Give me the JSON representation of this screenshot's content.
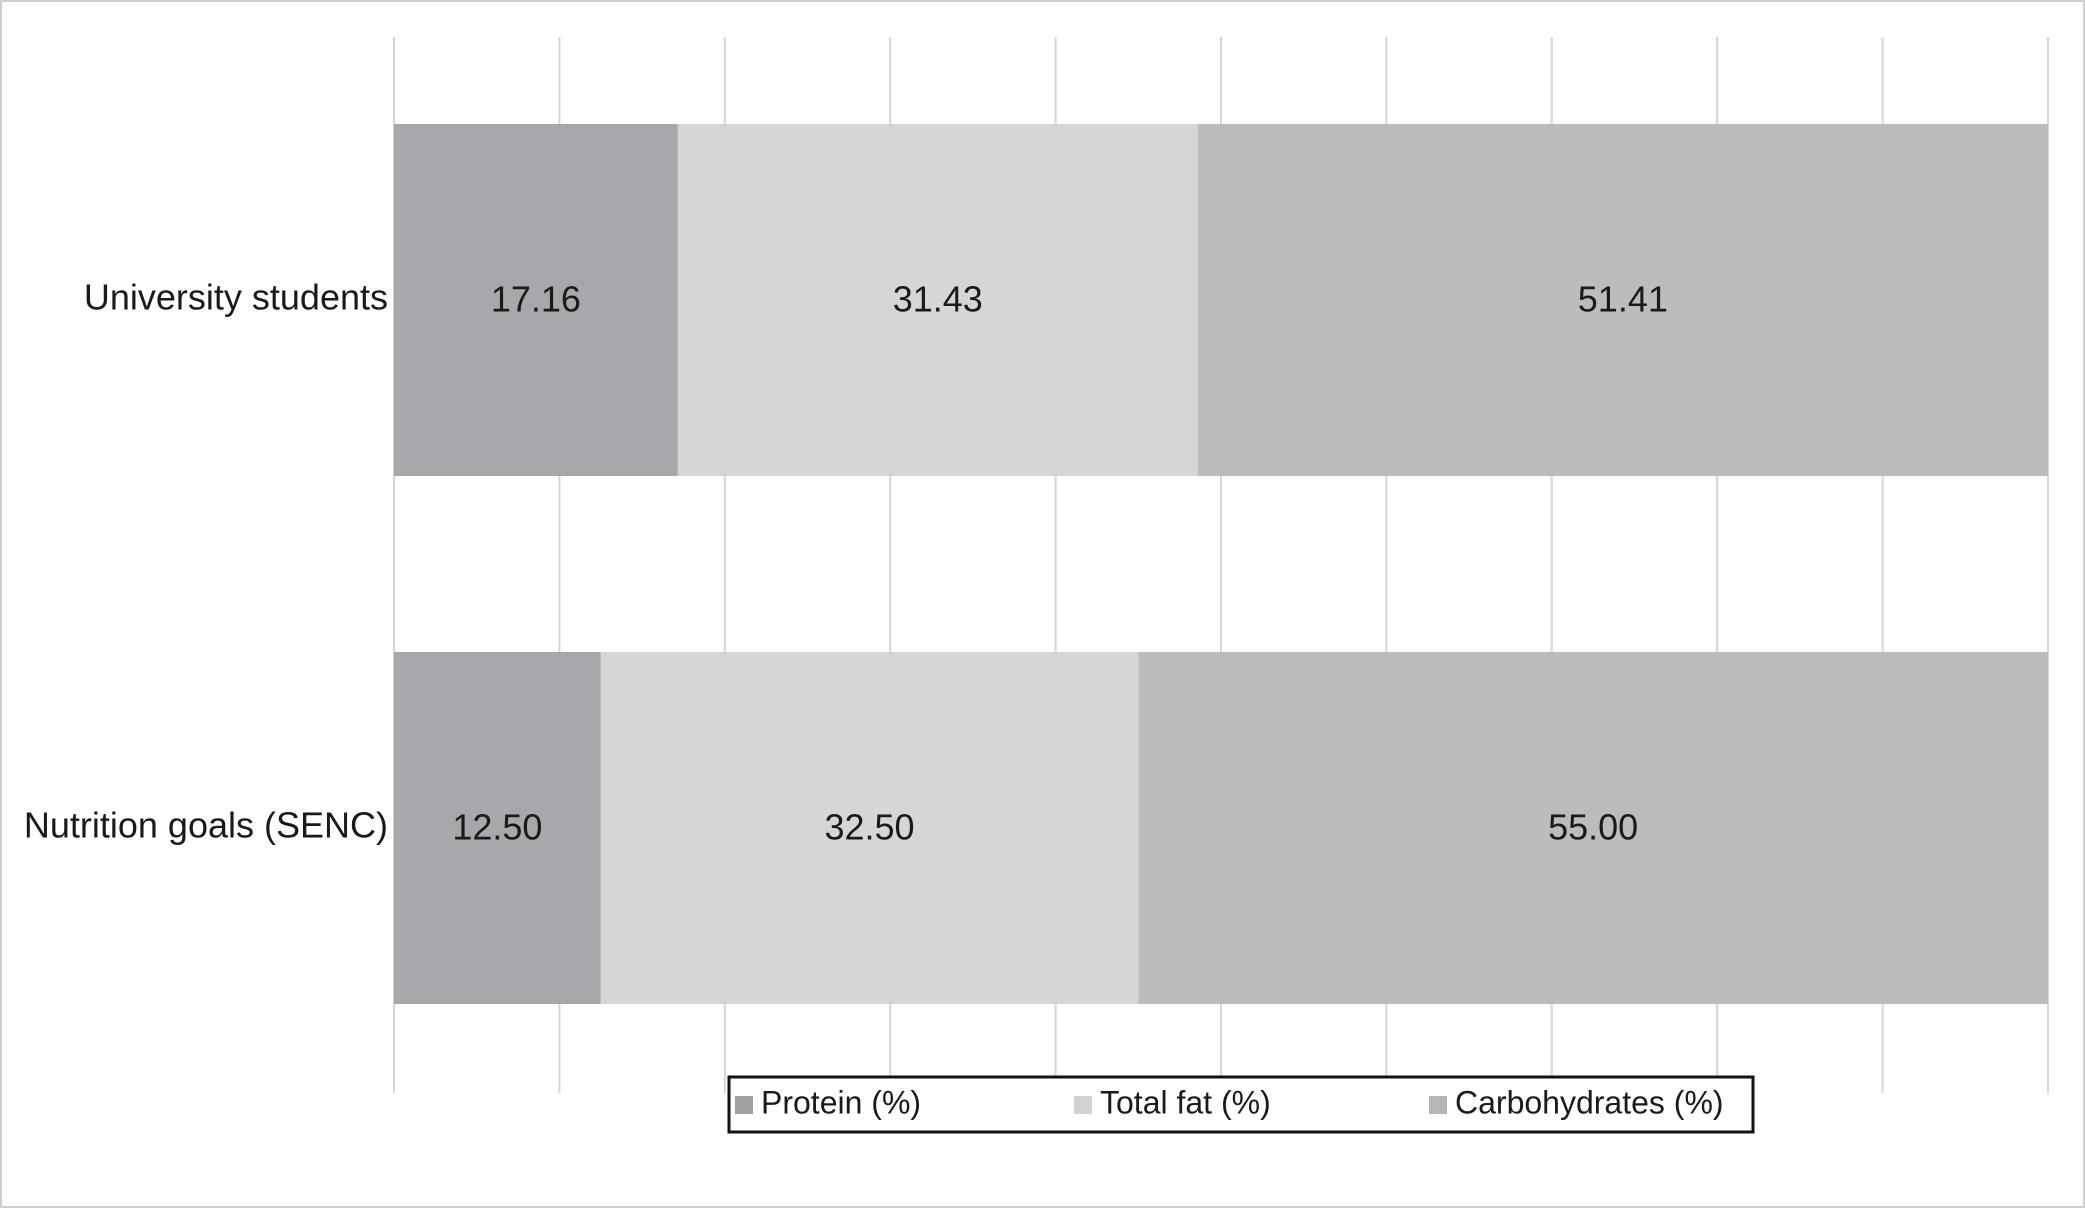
{
  "chart_data": {
    "type": "stacked-bar-horizontal",
    "categories": [
      "University students",
      "Nutrition goals (SENC)"
    ],
    "series": [
      {
        "name": "Protein (%)",
        "color": "#a0a1a4",
        "values": [
          17.16,
          12.5
        ],
        "value_labels": [
          "17.16",
          "12.50"
        ]
      },
      {
        "name": "Total fat (%)",
        "color": "#d1d2d4",
        "values": [
          31.43,
          32.5
        ],
        "value_labels": [
          "31.43",
          "32.50"
        ]
      },
      {
        "name": "Carbohydrates (%)",
        "color": "#b5b6b8",
        "values": [
          51.41,
          55
        ],
        "value_labels": [
          "51.41",
          "55.00"
        ]
      }
    ],
    "xlim": [
      0,
      100
    ],
    "xticks": [
      0,
      10,
      20,
      30,
      40,
      50,
      60,
      70,
      80,
      90,
      100
    ],
    "grid": true,
    "legend": "bottom"
  }
}
